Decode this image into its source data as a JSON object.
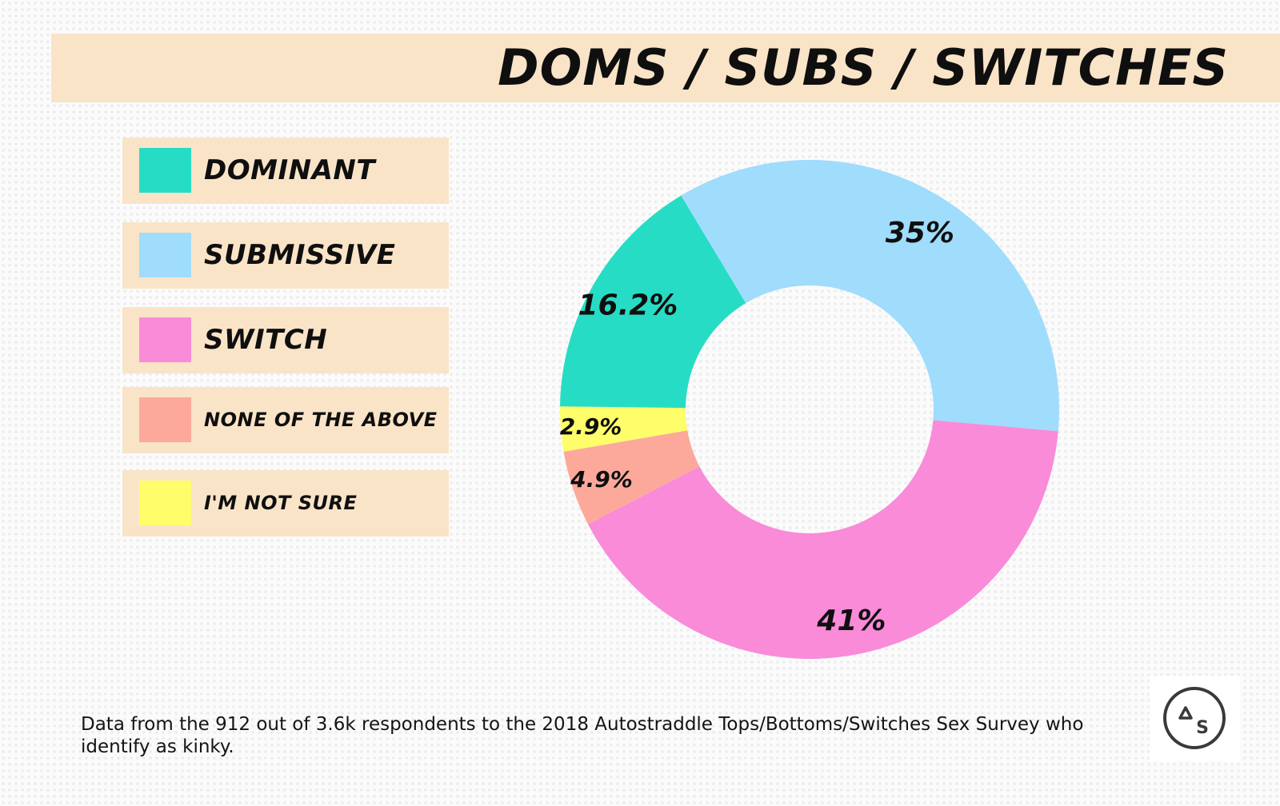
{
  "chart_data": {
    "type": "pie",
    "title": "DOMS / SUBS / SWITCHES",
    "donut": true,
    "categories": [
      "DOMINANT",
      "SUBMISSIVE",
      "SWITCH",
      "NONE OF THE ABOVE",
      "I'M NOT SURE"
    ],
    "values": [
      16.2,
      35,
      41,
      4.9,
      2.9
    ],
    "data_labels": [
      "16.2%",
      "35%",
      "41%",
      "4.9%",
      "2.9%"
    ],
    "colors": [
      "#27dcc4",
      "#a0dcfc",
      "#f98bd9",
      "#fca99c",
      "#fefe6a"
    ],
    "legend_position": "left"
  },
  "legend": [
    {
      "label": "DOMINANT",
      "color": "#27dcc4"
    },
    {
      "label": "SUBMISSIVE",
      "color": "#a0dcfc"
    },
    {
      "label": "SWITCH",
      "color": "#f98bd9"
    },
    {
      "label": "NONE OF THE ABOVE",
      "color": "#fca99c"
    },
    {
      "label": "I'M NOT SURE",
      "color": "#fefe6a"
    }
  ],
  "footnote": "Data from the 912 out of 3.6k respondents to the 2018 Autostraddle Tops/Bottoms/Switches Sex Survey who identify as kinky.",
  "logo": {
    "icon": "autostraddle-logo-icon",
    "letters": "AS"
  }
}
